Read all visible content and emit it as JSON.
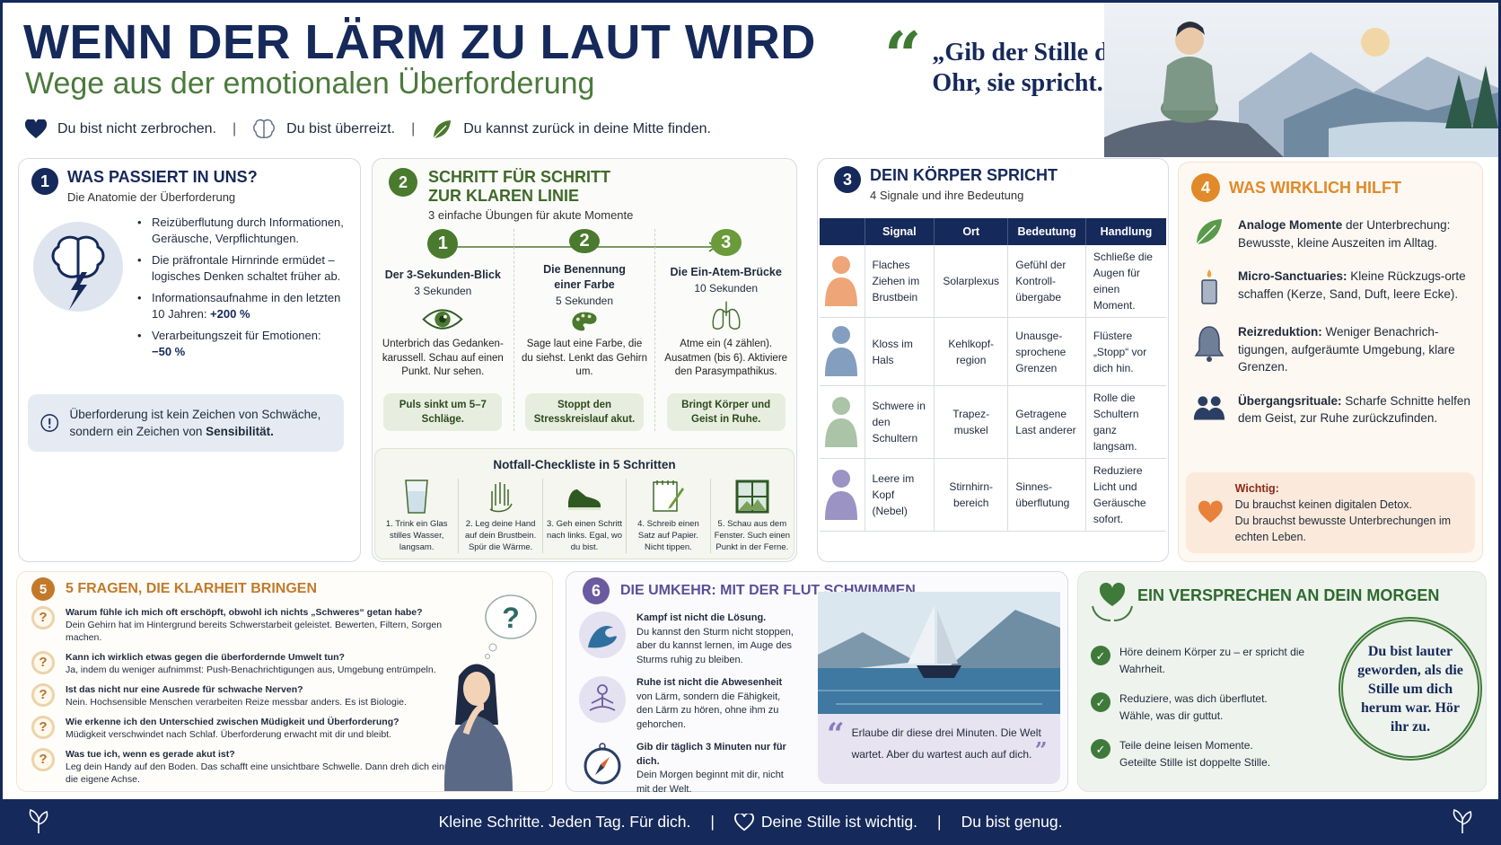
{
  "header": {
    "title": "WENN DER LÄRM ZU LAUT WIRD",
    "subtitle": "Wege aus der emotionalen Überforderung",
    "taglines": [
      {
        "icon": "heart-icon",
        "text": "Du bist nicht zerbrochen."
      },
      {
        "icon": "brain-icon",
        "text": "Du bist überreizt."
      },
      {
        "icon": "leaf-icon",
        "text": "Du kannst zurück in deine Mitte finden."
      }
    ],
    "separator": "|",
    "quote_mark": "“",
    "quote": "„Gib der Stille dein Ohr, sie spricht.“"
  },
  "section1": {
    "number": "1",
    "title": "WAS PASSIERT IN UNS?",
    "subtitle": "Die Anatomie der Überforderung",
    "bullets": [
      {
        "text": "Reizüberflutung durch Informationen, Geräusche, Verpflichtungen.",
        "strong": ""
      },
      {
        "text": "Die präfrontale Hirnrinde ermüdet – logisches Denken schaltet früher ab.",
        "strong": ""
      },
      {
        "text": "Informationsaufnahme in den letzten 10 Jahren: ",
        "strong": "+200 %"
      },
      {
        "text": "Verarbeitungszeit für Emotionen: ",
        "strong": "−50 %"
      }
    ],
    "note_text": "Überforderung ist kein Zeichen von Schwäche, sondern ein Zeichen von ",
    "note_strong": "Sensibilität."
  },
  "section2": {
    "number": "2",
    "title_line1": "SCHRITT FÜR SCHRITT",
    "title_line2": "ZUR KLAREN LINIE",
    "subtitle": "3 einfache Übungen für akute Momente",
    "steps": [
      {
        "num": "1",
        "title": "Der 3-Sekunden-Blick",
        "duration": "3 Sekunden",
        "icon": "eye-icon",
        "text": "Unterbrich das Gedanken-karussell. Schau auf einen Punkt. Nur sehen.",
        "result": "Puls sinkt um 5–7 Schläge."
      },
      {
        "num": "2",
        "title": "Die Benennung einer Farbe",
        "duration": "5 Sekunden",
        "icon": "palette-icon",
        "text": "Sage laut eine Farbe, die du siehst. Lenkt das Gehirn um.",
        "result": "Stoppt den Stresskreislauf akut."
      },
      {
        "num": "3",
        "title": "Die Ein-Atem-Brücke",
        "duration": "10 Sekunden",
        "icon": "lungs-icon",
        "text": "Atme ein (4 zählen). Ausatmen (bis 6). Aktiviere den Parasympathikus.",
        "result": "Bringt Körper und Geist in Ruhe."
      }
    ],
    "checklist_title": "Notfall-Checkliste in 5 Schritten",
    "checklist": [
      {
        "icon": "glass-icon",
        "text": "1. Trink ein Glas stilles Wasser, langsam."
      },
      {
        "icon": "hand-icon",
        "text": "2. Leg deine Hand auf dein Brustbein. Spür die Wärme."
      },
      {
        "icon": "shoe-icon",
        "text": "3. Geh einen Schritt nach links. Egal, wo du bist."
      },
      {
        "icon": "notepad-icon",
        "text": "4. Schreib einen Satz auf Papier. Nicht tippen."
      },
      {
        "icon": "window-icon",
        "text": "5. Schau aus dem Fenster. Such einen Punkt in der Ferne."
      }
    ]
  },
  "section3": {
    "number": "3",
    "title": "DEIN KÖRPER SPRICHT",
    "subtitle": "4 Signale und ihre Bedeutung",
    "columns": [
      "",
      "Signal",
      "Ort",
      "Bedeutung",
      "Handlung"
    ],
    "rows": [
      {
        "icon": "chest-body-icon",
        "color": "#e8874a",
        "signal": "Flaches Ziehen im Brustbein",
        "ort": "Solarplexus",
        "bedeutung": "Gefühl der Kontroll-übergabe",
        "handlung": "Schließe die Augen für einen Moment."
      },
      {
        "icon": "throat-head-icon",
        "color": "#5a7ea8",
        "signal": "Kloss im Hals",
        "ort": "Kehlkopf-region",
        "bedeutung": "Unausge-sprochene Grenzen",
        "handlung": "Flüstere „Stopp“ vor dich hin."
      },
      {
        "icon": "shoulders-body-icon",
        "color": "#8fb08a",
        "signal": "Schwere in den Schultern",
        "ort": "Trapez-muskel",
        "bedeutung": "Getragene Last anderer",
        "handlung": "Rolle die Schultern ganz langsam."
      },
      {
        "icon": "fog-head-icon",
        "color": "#7a6fb0",
        "signal": "Leere im Kopf (Nebel)",
        "ort": "Stirnhirn-bereich",
        "bedeutung": "Sinnes-überflutung",
        "handlung": "Reduziere Licht und Geräusche sofort."
      }
    ]
  },
  "section4": {
    "number": "4",
    "title": "WAS WIRKLICH HILFT",
    "items": [
      {
        "icon": "leaf-icon",
        "strong": "Analoge Momente",
        "text": " der Unterbrechung: Bewusste, kleine Auszeiten im Alltag."
      },
      {
        "icon": "candle-icon",
        "strong": "Micro-Sanctuaries:",
        "text": " Kleine Rückzugs-orte schaffen (Kerze, Sand, Duft, leere Ecke)."
      },
      {
        "icon": "bell-icon",
        "strong": "Reizreduktion:",
        "text": " Weniger Benachrich-tigungen, aufgeräumte Umgebung, klare Grenzen."
      },
      {
        "icon": "people-icon",
        "strong": "Übergangsrituale:",
        "text": " Scharfe Schnitte helfen dem Geist, zur Ruhe zurückzufinden."
      }
    ],
    "important_label": "Wichtig:",
    "important_line1": "Du brauchst keinen digitalen Detox.",
    "important_line2": "Du brauchst bewusste Unterbrechungen im echten Leben."
  },
  "section5": {
    "number": "5",
    "title": "5 FRAGEN, DIE KLARHEIT BRINGEN",
    "faqs": [
      {
        "q": "Warum fühle ich mich oft erschöpft, obwohl ich nichts „Schweres“ getan habe?",
        "a": "Dein Gehirn hat im Hintergrund bereits Schwerstarbeit geleistet. Bewerten, Filtern, Sorgen machen."
      },
      {
        "q": "Kann ich wirklich etwas gegen die überfordernde Umwelt tun?",
        "a": "Ja, indem du weniger aufnimmst: Push-Benachrichtigungen aus, Umgebung entrümpeln."
      },
      {
        "q": "Ist das nicht nur eine Ausrede für schwache Nerven?",
        "a": "Nein. Hochsensible Menschen verarbeiten Reize messbar anders. Es ist Biologie."
      },
      {
        "q": "Wie erkenne ich den Unterschied zwischen Müdigkeit und Überforderung?",
        "a": "Müdigkeit verschwindet nach Schlaf. Überforderung erwacht mit dir und bleibt."
      },
      {
        "q": "Was tue ich, wenn es gerade akut ist?",
        "a": "Leg dein Handy auf den Boden. Das schafft eine unsichtbare Schwelle. Dann dreh dich einmal um die eigene Achse."
      }
    ],
    "question_mark": "?"
  },
  "section6": {
    "number": "6",
    "title": "DIE UMKEHR: MIT DER FLUT SCHWIMMEN",
    "items": [
      {
        "icon": "wave-icon",
        "strong": "Kampf ist nicht die Lösung.",
        "text": "Du kannst den Sturm nicht stoppen, aber du kannst lernen, im Auge des Sturms ruhig zu bleiben."
      },
      {
        "icon": "meditation-icon",
        "strong": "Ruhe ist nicht die Abwesenheit",
        "text": "von Lärm, sondern die Fähigkeit, den Lärm zu hören, ohne ihm zu gehorchen."
      },
      {
        "icon": "compass-icon",
        "strong": "Gib dir täglich 3 Minuten nur für dich.",
        "text": "Dein Morgen beginnt mit dir, nicht mit der Welt."
      }
    ],
    "quote_open": "“",
    "quote_close": "”",
    "quote": "Erlaube dir diese drei Minuten. Die Welt wartet. Aber du wartest auch auf dich."
  },
  "section7": {
    "title": "EIN VERSPRECHEN AN DEIN MORGEN",
    "promises": [
      {
        "line1": "Höre deinem Körper zu – er spricht die Wahrheit.",
        "line2": ""
      },
      {
        "line1": "Reduziere, was dich überflutet.",
        "line2": "Wähle, was dir guttut."
      },
      {
        "line1": "Teile deine leisen Momente.",
        "line2": "Geteilte Stille ist doppelte Stille."
      }
    ],
    "check_mark": "✓",
    "circle_text": "Du bist lauter geworden, als die Stille um dich herum war. Hör ihr zu."
  },
  "footer": {
    "part1": "Kleine Schritte. Jeden Tag. Für dich.",
    "part2": "Deine Stille ist wichtig.",
    "part3": "Du bist genug.",
    "separator": "|"
  },
  "colors": {
    "navy": "#15295a",
    "green": "#4a7a2d",
    "orange": "#e08a2a",
    "purple": "#6a5aa0"
  }
}
